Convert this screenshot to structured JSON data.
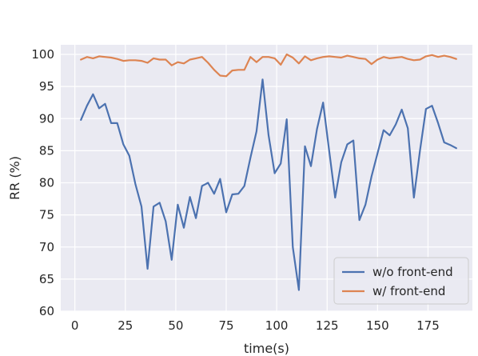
{
  "chart_data": {
    "type": "line",
    "xlabel": "time(s)",
    "ylabel": "RR (%)",
    "xlim": [
      -7,
      197
    ],
    "ylim": [
      60,
      101.5
    ],
    "xticks": [
      0,
      25,
      50,
      75,
      100,
      125,
      150,
      175
    ],
    "yticks": [
      60,
      65,
      70,
      75,
      80,
      85,
      90,
      95,
      100
    ],
    "grid": true,
    "legend_position": "lower-right",
    "series": [
      {
        "name": "w/o front-end",
        "color": "#4c72b0",
        "x": [
          3,
          6,
          9,
          12,
          15,
          18,
          21,
          24,
          27,
          30,
          33,
          36,
          39,
          42,
          45,
          48,
          51,
          54,
          57,
          60,
          63,
          66,
          69,
          72,
          75,
          78,
          81,
          84,
          87,
          90,
          93,
          96,
          99,
          102,
          105,
          108,
          111,
          114,
          117,
          120,
          123,
          126,
          129,
          132,
          135,
          138,
          141,
          144,
          147,
          150,
          153,
          156,
          159,
          162,
          165,
          168,
          171,
          174,
          177,
          180,
          183,
          186,
          189
        ],
        "values": [
          89.8,
          92.0,
          93.8,
          91.6,
          92.3,
          89.3,
          89.3,
          86.0,
          84.2,
          79.8,
          76.3,
          66.6,
          76.3,
          76.9,
          74.0,
          68.0,
          76.6,
          73.0,
          77.8,
          74.5,
          79.5,
          80.0,
          78.3,
          80.6,
          75.4,
          78.2,
          78.3,
          79.5,
          83.9,
          88.0,
          96.1,
          87.4,
          81.5,
          83.0,
          89.9,
          70.0,
          63.3,
          85.7,
          82.6,
          88.4,
          92.5,
          85.0,
          77.7,
          83.2,
          86.0,
          86.6,
          74.2,
          76.6,
          81.0,
          84.6,
          88.2,
          87.4,
          89.1,
          91.4,
          88.5,
          77.7,
          85.0,
          91.5,
          92.0,
          89.3,
          86.3,
          85.9,
          85.4
        ]
      },
      {
        "name": "w/ front-end",
        "color": "#dd8452",
        "x": [
          3,
          6,
          9,
          12,
          15,
          18,
          21,
          24,
          27,
          30,
          33,
          36,
          39,
          42,
          45,
          48,
          51,
          54,
          57,
          60,
          63,
          66,
          69,
          72,
          75,
          78,
          81,
          84,
          87,
          90,
          93,
          96,
          99,
          102,
          105,
          108,
          111,
          114,
          117,
          120,
          123,
          126,
          129,
          132,
          135,
          138,
          141,
          144,
          147,
          150,
          153,
          156,
          159,
          162,
          165,
          168,
          171,
          174,
          177,
          180,
          183,
          186,
          189
        ],
        "values": [
          99.2,
          99.6,
          99.4,
          99.7,
          99.6,
          99.5,
          99.3,
          99.0,
          99.1,
          99.1,
          99.0,
          98.7,
          99.4,
          99.2,
          99.2,
          98.3,
          98.8,
          98.6,
          99.2,
          99.4,
          99.6,
          98.7,
          97.6,
          96.7,
          96.6,
          97.5,
          97.6,
          97.6,
          99.6,
          98.8,
          99.6,
          99.6,
          99.4,
          98.4,
          100.0,
          99.5,
          98.6,
          99.7,
          99.1,
          99.4,
          99.6,
          99.7,
          99.6,
          99.5,
          99.8,
          99.6,
          99.4,
          99.3,
          98.5,
          99.2,
          99.6,
          99.4,
          99.5,
          99.6,
          99.3,
          99.1,
          99.2,
          99.7,
          99.9,
          99.6,
          99.8,
          99.6,
          99.3
        ]
      }
    ]
  }
}
